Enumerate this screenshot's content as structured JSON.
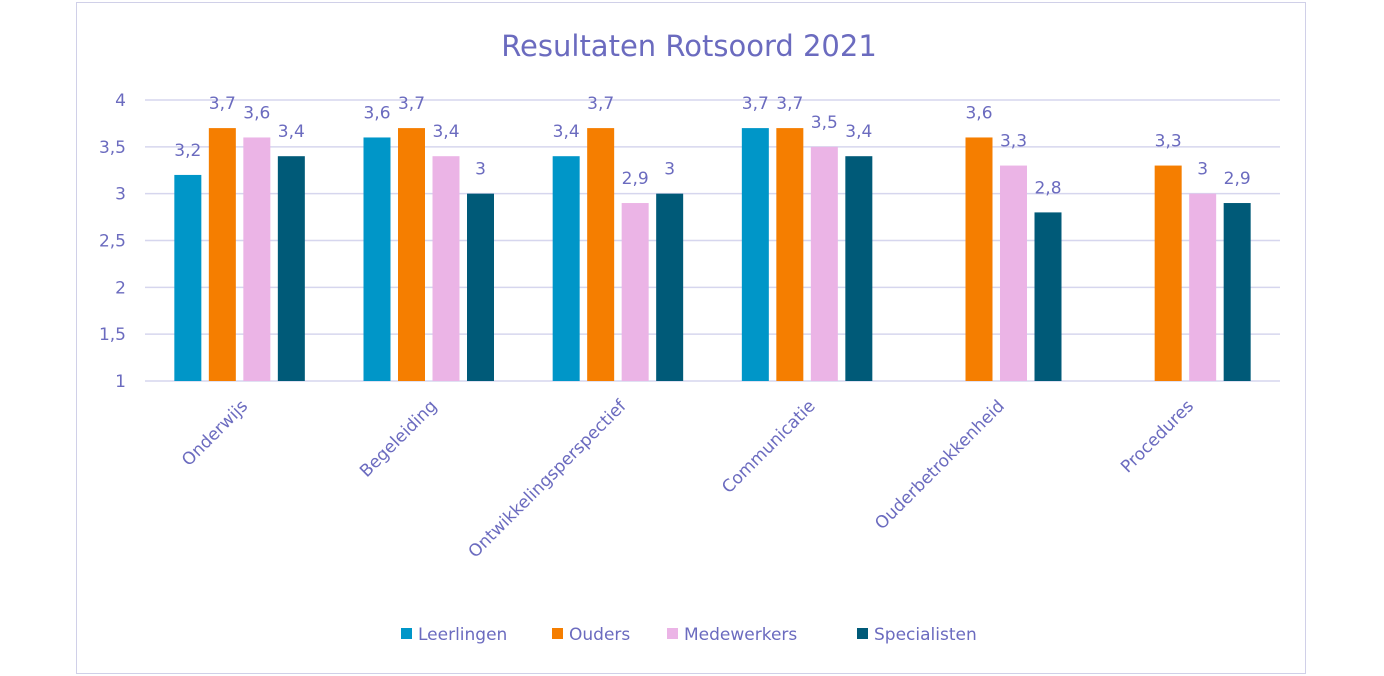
{
  "chart_data": {
    "type": "bar",
    "title": "Resultaten Rotsoord 2021",
    "xlabel": "",
    "ylabel": "",
    "ylim": [
      1,
      4
    ],
    "yticks": [
      "1",
      "1,5",
      "2",
      "2,5",
      "3",
      "3,5",
      "4"
    ],
    "grid": true,
    "legend_position": "bottom",
    "categories": [
      "Onderwijs",
      "Begeleiding",
      "Ontwikkelingsperspectief",
      "Communicatie",
      "Ouderbetrokkenheid",
      "Procedures"
    ],
    "series": [
      {
        "name": "Leerlingen",
        "color": "#0096c8",
        "values": [
          3.2,
          3.6,
          3.4,
          3.7,
          null,
          null
        ],
        "labels": [
          "3,2",
          "3,6",
          "3,4",
          "3,7",
          "",
          ""
        ]
      },
      {
        "name": "Ouders",
        "color": "#f57e00",
        "values": [
          3.7,
          3.7,
          3.7,
          3.7,
          3.6,
          3.3
        ],
        "labels": [
          "3,7",
          "3,7",
          "3,7",
          "3,7",
          "3,6",
          "3,3"
        ]
      },
      {
        "name": "Medewerkers",
        "color": "#ebb4e6",
        "values": [
          3.6,
          3.4,
          2.9,
          3.5,
          3.3,
          3.0
        ],
        "labels": [
          "3,6",
          "3,4",
          "2,9",
          "3,5",
          "3,3",
          "3"
        ]
      },
      {
        "name": "Specialisten",
        "color": "#005a78",
        "values": [
          3.4,
          3.0,
          3.0,
          3.4,
          2.8,
          2.9
        ],
        "labels": [
          "3,4",
          "3",
          "3",
          "3,4",
          "2,8",
          "2,9"
        ]
      }
    ]
  }
}
